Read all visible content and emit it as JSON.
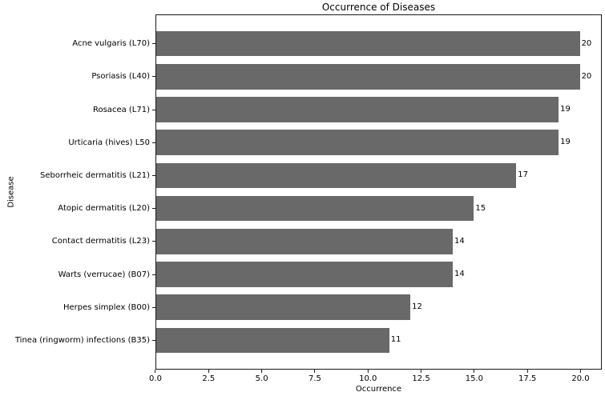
{
  "chart_data": {
    "type": "bar",
    "orientation": "horizontal",
    "title": "Occurrence of Diseases",
    "xlabel": "Occurrence",
    "ylabel": "Disease",
    "categories": [
      "Acne vulgaris (L70)",
      "Psoriasis (L40)",
      "Rosacea (L71)",
      "Urticaria (hives) L50",
      "Seborrheic dermatitis (L21)",
      "Atopic dermatitis (L20)",
      "Contact dermatitis (L23)",
      "Warts (verrucae) (B07)",
      "Herpes simplex (B00)",
      "Tinea (ringworm) infections (B35)"
    ],
    "values": [
      20,
      20,
      19,
      19,
      17,
      15,
      14,
      14,
      12,
      11
    ],
    "bar_labels": [
      "20",
      "20",
      "19",
      "19",
      "17",
      "15",
      "14",
      "14",
      "12",
      "11"
    ],
    "xticks": [
      "0.0",
      "2.5",
      "5.0",
      "7.5",
      "10.0",
      "12.5",
      "15.0",
      "17.5",
      "20.0"
    ],
    "xtick_values": [
      0,
      2.5,
      5,
      7.5,
      10,
      12.5,
      15,
      17.5,
      20
    ],
    "xlim": [
      0,
      21
    ],
    "grid": false,
    "legend_position": "none",
    "bar_color": "#696969",
    "background_color": "#ffffff",
    "text_color": "#000000"
  }
}
